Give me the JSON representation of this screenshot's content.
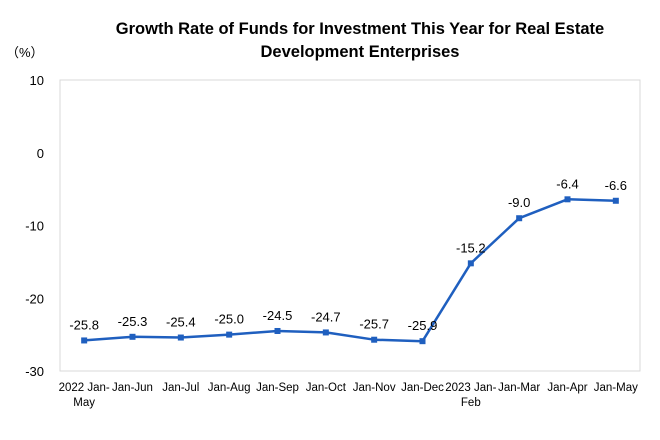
{
  "chart_data": {
    "type": "line",
    "title_line1": "Growth Rate of Funds for Investment This Year for Real Estate",
    "title_line2": "Development Enterprises",
    "unit": "（%）",
    "ylim": [
      -30,
      10
    ],
    "yticks": [
      10,
      0,
      -10,
      -20,
      -30
    ],
    "grid": false,
    "legend": "none",
    "categories": [
      [
        "2022 Jan-",
        "May"
      ],
      [
        "Jan-Jun"
      ],
      [
        "Jan-Jul"
      ],
      [
        "Jan-Aug"
      ],
      [
        "Jan-Sep"
      ],
      [
        "Jan-Oct"
      ],
      [
        "Jan-Nov"
      ],
      [
        "Jan-Dec"
      ],
      [
        "2023 Jan-",
        "Feb"
      ],
      [
        "Jan-Mar"
      ],
      [
        "Jan-Apr"
      ],
      [
        "Jan-May"
      ]
    ],
    "series": [
      {
        "values": [
          -25.8,
          -25.3,
          -25.4,
          -25.0,
          -24.5,
          -24.7,
          -25.7,
          -25.9,
          -15.2,
          -9.0,
          -6.4,
          -6.6
        ],
        "labels": [
          "-25.8",
          "-25.3",
          "-25.4",
          "-25.0",
          "-24.5",
          "-24.7",
          "-25.7",
          "-25.9",
          "-15.2",
          "-9.0",
          "-6.4",
          "-6.6"
        ]
      }
    ],
    "line_color": "#1f5fbf"
  }
}
